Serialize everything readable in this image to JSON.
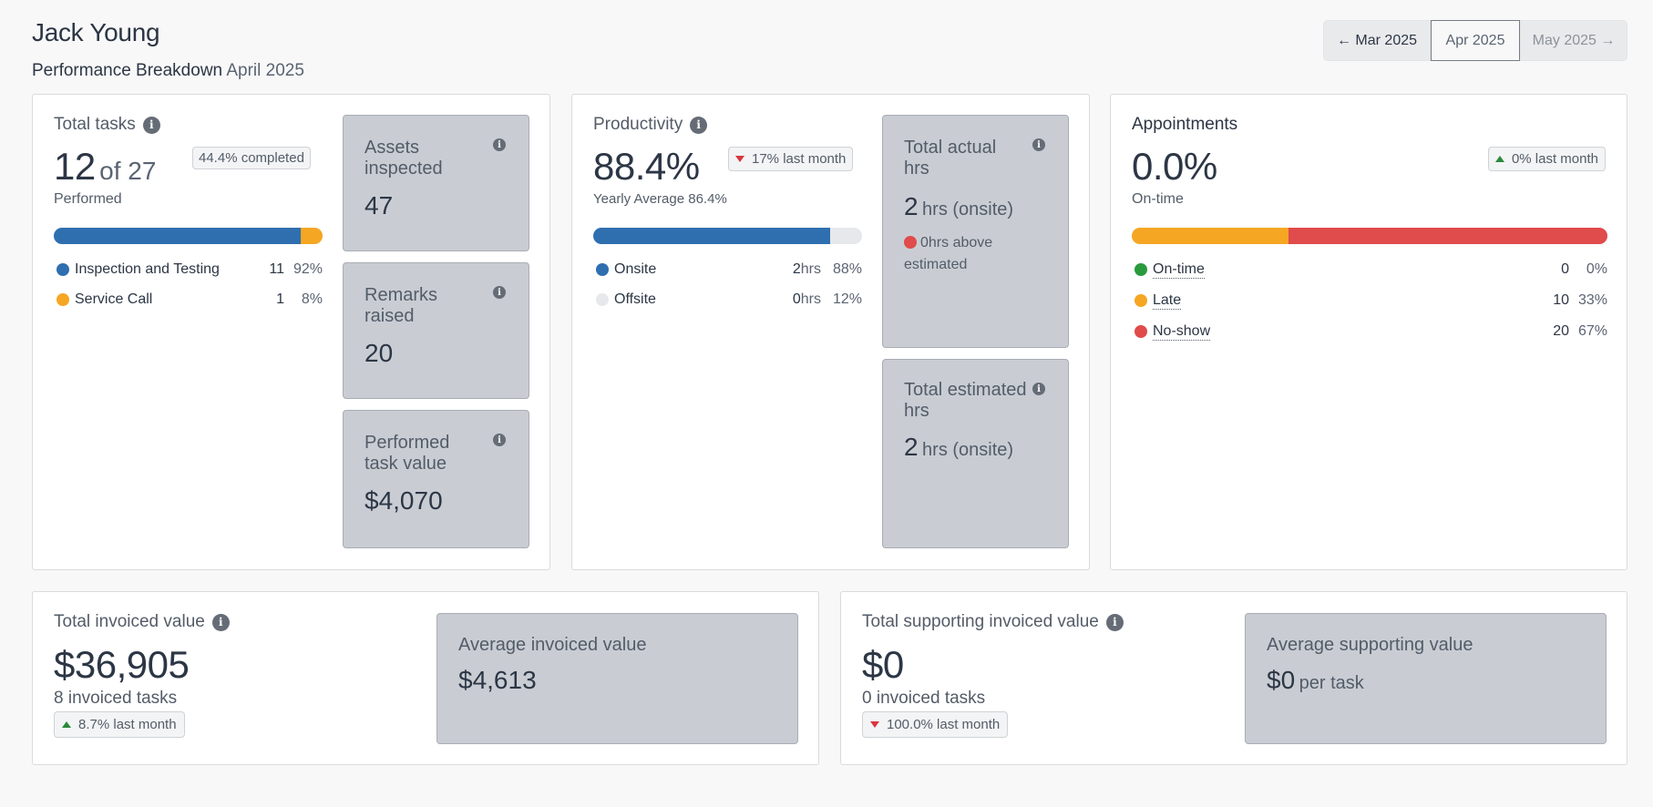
{
  "header": {
    "person_name": "Jack Young",
    "subtitle": "Performance Breakdown",
    "subtitle_month": "April 2025",
    "nav": {
      "prev": "← Mar 2025",
      "current": "Apr 2025",
      "next": "May 2025 →"
    }
  },
  "total_tasks": {
    "label": "Total tasks",
    "performed": "12",
    "of_total": "of 27",
    "performed_label": "Performed",
    "completed_pill": "44.4% completed",
    "progress_fraction": 0.444,
    "rows": [
      {
        "label": "Inspection and Testing",
        "count": "11",
        "pct": "92%",
        "color": "#2f6fb0",
        "share": 0.92
      },
      {
        "label": "Service Call",
        "count": "1",
        "pct": "8%",
        "color": "#f5a623",
        "share": 0.08
      }
    ]
  },
  "tiles_left": [
    {
      "title": "Assets inspected",
      "value": "47"
    },
    {
      "title": "Remarks raised",
      "value": "20"
    },
    {
      "title": "Performed task value",
      "value": "$4,070"
    }
  ],
  "productivity": {
    "label": "Productivity",
    "value": "88.4%",
    "trend": "17% last month",
    "trend_direction": "down",
    "yearly": "Yearly Average 86.4%",
    "rows": [
      {
        "label": "Onsite",
        "hrs": "2",
        "unit": "hrs",
        "pct": "88%",
        "color": "#2f6fb0",
        "share": 0.88
      },
      {
        "label": "Offsite",
        "hrs": "0",
        "unit": "hrs",
        "pct": "12%",
        "color": "#e6e8eb",
        "share": 0.12
      }
    ]
  },
  "tiles_mid": {
    "actual": {
      "title": "Total actual hrs",
      "value": "2",
      "unit": "hrs (onsite)",
      "note": "0hrs above estimated",
      "note_color": "#e04b4b"
    },
    "estimated": {
      "title": "Total estimated hrs",
      "value": "2",
      "unit": "hrs (onsite)"
    }
  },
  "appointments": {
    "label": "Appointments",
    "value": "0.0%",
    "value_label": "On-time",
    "trend": "0% last month",
    "trend_direction": "up",
    "rows": [
      {
        "label": "On-time",
        "count": "0",
        "pct": "0%",
        "color": "#2a9a3e",
        "share": 0.0
      },
      {
        "label": "Late",
        "count": "10",
        "pct": "33%",
        "color": "#f5a623",
        "share": 0.33
      },
      {
        "label": "No-show",
        "count": "20",
        "pct": "67%",
        "color": "#e04b4b",
        "share": 0.67
      }
    ]
  },
  "invoiced": {
    "label": "Total invoiced value",
    "value": "$36,905",
    "count": "8 invoiced tasks",
    "trend": "8.7% last month",
    "trend_direction": "up",
    "avg_title": "Average invoiced value",
    "avg_value": "$4,613"
  },
  "supporting": {
    "label": "Total supporting invoiced value",
    "value": "$0",
    "count": "0 invoiced tasks",
    "trend": "100.0% last month",
    "trend_direction": "down",
    "avg_title": "Average supporting value",
    "avg_value": "$0",
    "avg_unit": "per task"
  }
}
